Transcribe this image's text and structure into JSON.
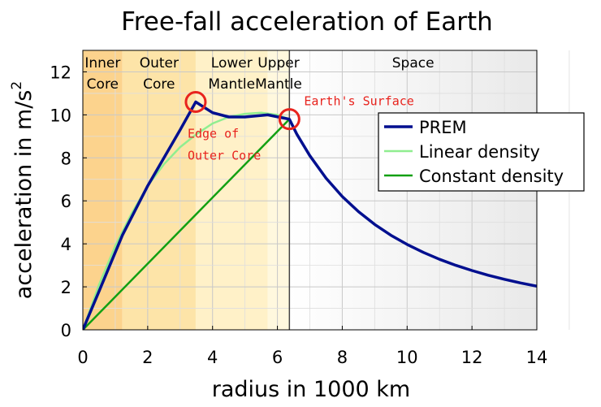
{
  "chart_data": {
    "type": "line",
    "title": "Free-fall acceleration of Earth",
    "xlabel": "radius in 1000 km",
    "ylabel": "acceleration in m/s",
    "ylabel_superscript": "2",
    "xlim": [
      0,
      14
    ],
    "ylim": [
      0,
      13
    ],
    "xticks": [
      "0",
      "2",
      "4",
      "6",
      "8",
      "10",
      "12",
      "14"
    ],
    "yticks": [
      "0",
      "2",
      "4",
      "6",
      "8",
      "10",
      "12"
    ],
    "grid": true,
    "legend_position": "right",
    "regions": [
      {
        "label_lines": [
          "Inner",
          "Core"
        ],
        "from": 0,
        "to": 1.22,
        "color": "#fcd38d"
      },
      {
        "label_lines": [
          "Outer",
          "Core"
        ],
        "from": 1.22,
        "to": 3.48,
        "color": "#fde4a8"
      },
      {
        "label_lines": [
          "Lower",
          "Mantle"
        ],
        "from": 3.48,
        "to": 5.7,
        "color": "#fff1c8"
      },
      {
        "label_lines": [
          "Upper",
          "Mantle"
        ],
        "from": 5.7,
        "to": 6.37,
        "color": "#fff8de"
      },
      {
        "label_lines": [
          "Space"
        ],
        "from": 6.37,
        "to": 14,
        "color": "#f2f2f2"
      }
    ],
    "surface_x": 6.37,
    "annotations": [
      {
        "text_lines": [
          "Edge of",
          "Outer Core"
        ],
        "x": 3.48,
        "y": 10.6
      },
      {
        "text_lines": [
          "Earth's Surface"
        ],
        "x": 6.37,
        "y": 9.8
      }
    ],
    "series": [
      {
        "name": "PREM",
        "color": "#000f8f",
        "points": [
          [
            0,
            0
          ],
          [
            0.5,
            1.8
          ],
          [
            1.22,
            4.4
          ],
          [
            2,
            6.7
          ],
          [
            3,
            9.3
          ],
          [
            3.48,
            10.6
          ],
          [
            4,
            10.1
          ],
          [
            4.5,
            9.9
          ],
          [
            5,
            9.9
          ],
          [
            5.7,
            10.0
          ],
          [
            6.2,
            9.85
          ],
          [
            6.37,
            9.8
          ],
          [
            6.6,
            9.1
          ],
          [
            7,
            8.1
          ],
          [
            7.5,
            7.05
          ],
          [
            8,
            6.2
          ],
          [
            8.5,
            5.5
          ],
          [
            9,
            4.9
          ],
          [
            9.5,
            4.4
          ],
          [
            10,
            3.97
          ],
          [
            10.5,
            3.6
          ],
          [
            11,
            3.28
          ],
          [
            11.5,
            3.0
          ],
          [
            12,
            2.76
          ],
          [
            12.5,
            2.54
          ],
          [
            13,
            2.35
          ],
          [
            13.5,
            2.18
          ],
          [
            14,
            2.03
          ]
        ]
      },
      {
        "name": "Linear density",
        "color": "#90ee90",
        "points": [
          [
            0,
            0
          ],
          [
            0.5,
            2.1
          ],
          [
            1,
            3.9
          ],
          [
            1.5,
            5.4
          ],
          [
            2,
            6.7
          ],
          [
            2.5,
            7.7
          ],
          [
            3,
            8.5
          ],
          [
            3.5,
            9.1
          ],
          [
            4,
            9.6
          ],
          [
            4.5,
            9.9
          ],
          [
            5,
            10.05
          ],
          [
            5.5,
            10.1
          ],
          [
            6,
            10.0
          ],
          [
            6.37,
            9.8
          ]
        ]
      },
      {
        "name": "Constant density",
        "color": "#12a012",
        "points": [
          [
            0,
            0
          ],
          [
            6.37,
            9.8
          ]
        ]
      }
    ]
  }
}
